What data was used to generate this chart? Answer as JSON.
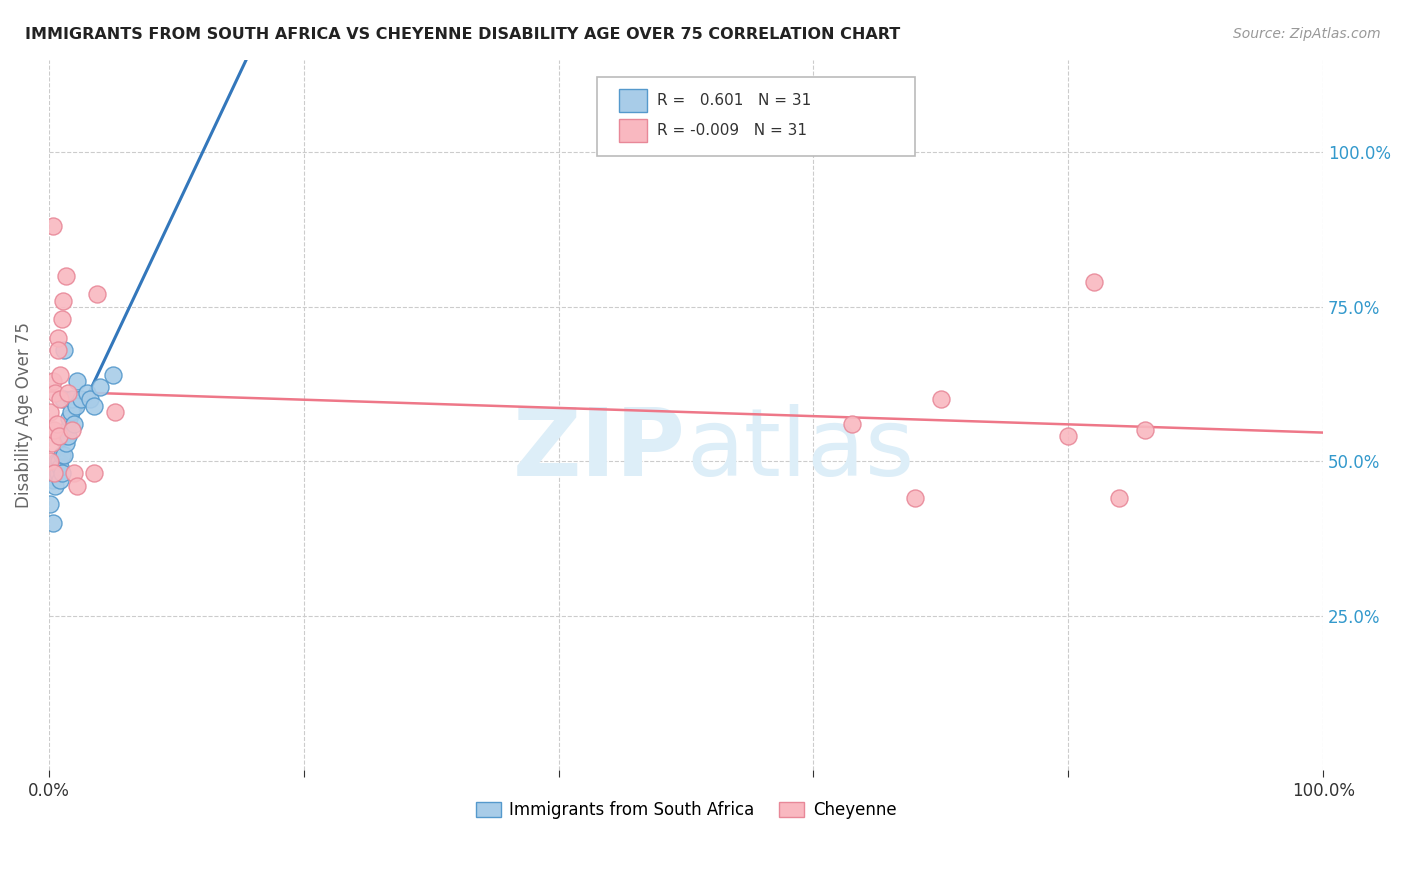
{
  "title": "IMMIGRANTS FROM SOUTH AFRICA VS CHEYENNE DISABILITY AGE OVER 75 CORRELATION CHART",
  "source": "Source: ZipAtlas.com",
  "ylabel": "Disability Age Over 75",
  "legend_label_blue": "Immigrants from South Africa",
  "legend_label_pink": "Cheyenne",
  "R_blue": 0.601,
  "N_blue": 31,
  "R_pink": -0.009,
  "N_pink": 31,
  "blue_color": "#a8cce8",
  "pink_color": "#f9b8c0",
  "blue_edge_color": "#5599cc",
  "pink_edge_color": "#e88898",
  "blue_line_color": "#3377bb",
  "pink_line_color": "#ee7788",
  "watermark_color": "#ddeef8",
  "blue_points_x": [
    0.1,
    0.3,
    0.3,
    0.5,
    0.5,
    0.6,
    0.7,
    0.8,
    0.9,
    0.9,
    1.0,
    1.0,
    1.0,
    1.1,
    1.2,
    1.2,
    1.3,
    1.4,
    1.5,
    1.6,
    1.7,
    1.8,
    2.0,
    2.1,
    2.2,
    2.5,
    3.0,
    3.2,
    3.5,
    4.0,
    5.0
  ],
  "blue_points_y": [
    43,
    40,
    47,
    48,
    46,
    50,
    48,
    50,
    47,
    49,
    48,
    51,
    54,
    60,
    68,
    51,
    53,
    55,
    54,
    57,
    58,
    60,
    56,
    59,
    63,
    60,
    61,
    60,
    59,
    62,
    64
  ],
  "pink_points_x": [
    0.1,
    0.1,
    0.2,
    0.3,
    0.4,
    0.4,
    0.5,
    0.6,
    0.7,
    0.7,
    0.8,
    0.9,
    0.9,
    1.0,
    1.1,
    1.3,
    1.5,
    1.8,
    2.0,
    2.2,
    3.5,
    3.8,
    5.2,
    0.3,
    63,
    68,
    70,
    80,
    82,
    84,
    86
  ],
  "pink_points_y": [
    50,
    58,
    53,
    63,
    48,
    55,
    61,
    56,
    70,
    68,
    54,
    60,
    64,
    73,
    76,
    80,
    61,
    55,
    48,
    46,
    48,
    77,
    58,
    88,
    56,
    44,
    60,
    54,
    79,
    44,
    55
  ],
  "xlim": [
    0,
    100
  ],
  "ylim": [
    0,
    115
  ],
  "yticks": [
    25,
    50,
    75,
    100
  ],
  "xticks": [
    0,
    20,
    40,
    60,
    80,
    100
  ]
}
